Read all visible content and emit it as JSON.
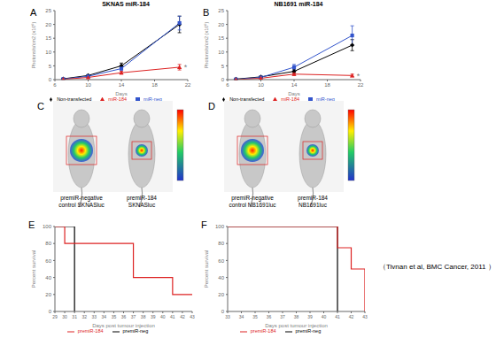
{
  "chart_data": [
    {
      "panel": "A",
      "type": "line",
      "title": "SKNAS miR-184",
      "x_label": "Days",
      "y_label": "Photons/s/cm2 (x10⁶)",
      "x": [
        7,
        10,
        14,
        21
      ],
      "xlim": [
        6,
        22
      ],
      "xticks": [
        6,
        10,
        14,
        18,
        22
      ],
      "ylim": [
        0,
        25
      ],
      "yticks": [
        0,
        5,
        10,
        15,
        20,
        25
      ],
      "legend": "bottom",
      "series": [
        {
          "name": "Non-transfected",
          "color": "#000000",
          "marker": "diamond",
          "values": [
            0.3,
            1.5,
            5.0,
            20.0
          ],
          "errors": [
            0.1,
            0.3,
            1.0,
            3.0
          ]
        },
        {
          "name": "miR-neg",
          "color": "#3355cc",
          "marker": "square",
          "values": [
            0.2,
            1.2,
            4.0,
            20.5
          ],
          "errors": [
            0.1,
            0.3,
            0.8,
            2.5
          ]
        },
        {
          "name": "miR-184",
          "color": "#dd2222",
          "marker": "triangle",
          "values": [
            0.1,
            0.8,
            2.5,
            4.5
          ],
          "errors": [
            0.05,
            0.2,
            0.5,
            1.0
          ]
        }
      ],
      "annotations": [
        {
          "text": "*",
          "x": 21,
          "y": 4.5
        }
      ]
    },
    {
      "panel": "B",
      "type": "line",
      "title": "NB1691 miR-184",
      "x_label": "Days",
      "y_label": "Photons/s/cm2 (x10⁶)",
      "x": [
        7,
        10,
        14,
        21
      ],
      "xlim": [
        6,
        22
      ],
      "xticks": [
        6,
        10,
        14,
        18,
        22
      ],
      "ylim": [
        0,
        25
      ],
      "yticks": [
        0,
        5,
        10,
        15,
        20,
        25
      ],
      "legend": "bottom",
      "series": [
        {
          "name": "Non-transfected",
          "color": "#000000",
          "marker": "diamond",
          "values": [
            0.2,
            1.0,
            3.0,
            12.5
          ],
          "errors": [
            0.1,
            0.3,
            0.8,
            2.0
          ]
        },
        {
          "name": "miR-neg",
          "color": "#3355cc",
          "marker": "square",
          "values": [
            0.1,
            0.8,
            4.5,
            16.0
          ],
          "errors": [
            0.1,
            0.3,
            1.0,
            3.5
          ]
        },
        {
          "name": "miR-184",
          "color": "#dd2222",
          "marker": "triangle",
          "values": [
            0.0,
            0.5,
            2.0,
            1.5
          ],
          "errors": [
            0.05,
            0.2,
            0.5,
            0.5
          ]
        }
      ],
      "annotations": [
        {
          "text": "*",
          "x": 21,
          "y": 1.5
        }
      ]
    },
    {
      "panel": "E",
      "type": "step",
      "x_label": "Days post tumour injection",
      "y_label": "Percent survival",
      "xlim": [
        29,
        43
      ],
      "xticks": [
        29,
        30,
        31,
        32,
        33,
        34,
        35,
        36,
        37,
        38,
        39,
        40,
        41,
        42,
        43
      ],
      "ylim": [
        0,
        100
      ],
      "yticks": [
        0,
        20,
        40,
        60,
        80,
        100
      ],
      "legend": "bottom",
      "series": [
        {
          "name": "premiR-neg",
          "color": "#000000",
          "x": [
            29,
            31
          ],
          "values": [
            100,
            0
          ]
        },
        {
          "name": "premiR-184",
          "color": "#dd2222",
          "x": [
            29,
            30,
            37,
            41,
            43
          ],
          "values": [
            100,
            80,
            40,
            20,
            20
          ]
        }
      ]
    },
    {
      "panel": "F",
      "type": "step",
      "x_label": "Days post tumour injection",
      "y_label": "Percent survival",
      "xlim": [
        33,
        43
      ],
      "xticks": [
        33,
        34,
        35,
        36,
        37,
        38,
        39,
        40,
        41,
        42,
        43
      ],
      "ylim": [
        0,
        100
      ],
      "yticks": [
        0,
        20,
        40,
        60,
        80,
        100
      ],
      "legend": "bottom",
      "series": [
        {
          "name": "premiR-neg",
          "color": "#000000",
          "x": [
            33,
            41
          ],
          "values": [
            100,
            0
          ]
        },
        {
          "name": "premiR-184",
          "color": "#dd2222",
          "x": [
            33,
            41,
            42,
            43
          ],
          "values": [
            100,
            75,
            50,
            0
          ]
        }
      ]
    }
  ],
  "images": [
    {
      "panel": "C",
      "captions": [
        [
          "premiR-negative",
          "control SKNASluc"
        ],
        [
          "premiR-184",
          "SKNASluc"
        ]
      ]
    },
    {
      "panel": "D",
      "captions": [
        [
          "premiR-negative",
          "control NB1691luc"
        ],
        [
          "premiR-184",
          "NB1691luc"
        ]
      ]
    }
  ],
  "source": "（Tivnan et al, BMC Cancer, 2011 ）"
}
